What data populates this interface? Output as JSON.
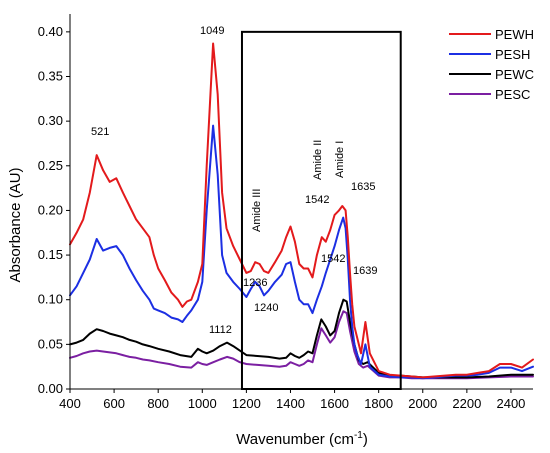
{
  "chart_data": {
    "type": "line",
    "title": "",
    "xlabel_main": "Wavenumber (cm",
    "xlabel_sup": "-1",
    "xlabel_close": ")",
    "ylabel": "Absorbance (AU)",
    "xlim": [
      400,
      2500
    ],
    "ylim": [
      0.0,
      0.42
    ],
    "xticks": [
      400,
      600,
      800,
      1000,
      1200,
      1400,
      1600,
      1800,
      2000,
      2200,
      2400
    ],
    "yticks": [
      0.0,
      0.05,
      0.1,
      0.15,
      0.2,
      0.25,
      0.3,
      0.35,
      0.4
    ],
    "ytick_labels": [
      "0.00",
      "0.05",
      "0.10",
      "0.15",
      "0.20",
      "0.25",
      "0.30",
      "0.35",
      "0.40"
    ],
    "grid": false,
    "legend_position": "top-right",
    "highlight_box": {
      "x": [
        1180,
        1900
      ],
      "y": [
        0.0,
        0.4
      ]
    },
    "series": [
      {
        "name": "PEWH",
        "color": "#e31a1c",
        "x": [
          400,
          430,
          460,
          490,
          521,
          550,
          580,
          610,
          640,
          670,
          700,
          730,
          760,
          780,
          800,
          830,
          860,
          890,
          910,
          930,
          950,
          980,
          1000,
          1020,
          1049,
          1070,
          1090,
          1110,
          1140,
          1170,
          1200,
          1220,
          1240,
          1260,
          1280,
          1300,
          1330,
          1360,
          1380,
          1400,
          1420,
          1440,
          1460,
          1480,
          1500,
          1520,
          1542,
          1560,
          1580,
          1600,
          1620,
          1635,
          1650,
          1660,
          1670,
          1680,
          1690,
          1700,
          1720,
          1740,
          1760,
          1800,
          1850,
          1900,
          1950,
          2000,
          2050,
          2100,
          2150,
          2200,
          2250,
          2300,
          2350,
          2400,
          2450,
          2500
        ],
        "y": [
          0.162,
          0.175,
          0.19,
          0.22,
          0.262,
          0.245,
          0.232,
          0.236,
          0.22,
          0.205,
          0.19,
          0.18,
          0.17,
          0.15,
          0.135,
          0.122,
          0.108,
          0.1,
          0.092,
          0.098,
          0.1,
          0.12,
          0.14,
          0.25,
          0.387,
          0.33,
          0.22,
          0.18,
          0.16,
          0.145,
          0.13,
          0.132,
          0.142,
          0.14,
          0.132,
          0.13,
          0.142,
          0.155,
          0.17,
          0.182,
          0.165,
          0.14,
          0.135,
          0.135,
          0.125,
          0.15,
          0.17,
          0.165,
          0.178,
          0.195,
          0.2,
          0.205,
          0.2,
          0.17,
          0.13,
          0.095,
          0.07,
          0.06,
          0.04,
          0.075,
          0.04,
          0.02,
          0.016,
          0.015,
          0.014,
          0.013,
          0.014,
          0.015,
          0.016,
          0.016,
          0.018,
          0.02,
          0.028,
          0.028,
          0.024,
          0.033
        ]
      },
      {
        "name": "PESH",
        "color": "#1c2fe3",
        "x": [
          400,
          430,
          460,
          490,
          521,
          550,
          580,
          610,
          640,
          670,
          700,
          730,
          760,
          780,
          800,
          830,
          860,
          890,
          910,
          930,
          950,
          980,
          1000,
          1020,
          1049,
          1070,
          1090,
          1110,
          1140,
          1170,
          1200,
          1220,
          1240,
          1260,
          1280,
          1300,
          1330,
          1360,
          1380,
          1400,
          1420,
          1440,
          1460,
          1480,
          1500,
          1520,
          1542,
          1560,
          1580,
          1600,
          1620,
          1639,
          1650,
          1660,
          1670,
          1680,
          1690,
          1700,
          1720,
          1740,
          1760,
          1800,
          1850,
          1900,
          1950,
          2000,
          2050,
          2100,
          2150,
          2200,
          2250,
          2300,
          2350,
          2400,
          2450,
          2500
        ],
        "y": [
          0.105,
          0.115,
          0.13,
          0.145,
          0.168,
          0.155,
          0.158,
          0.16,
          0.15,
          0.135,
          0.122,
          0.11,
          0.1,
          0.09,
          0.088,
          0.085,
          0.08,
          0.078,
          0.075,
          0.082,
          0.088,
          0.1,
          0.12,
          0.2,
          0.295,
          0.24,
          0.15,
          0.13,
          0.12,
          0.112,
          0.103,
          0.112,
          0.12,
          0.115,
          0.105,
          0.11,
          0.12,
          0.128,
          0.14,
          0.142,
          0.12,
          0.1,
          0.095,
          0.095,
          0.085,
          0.1,
          0.115,
          0.13,
          0.145,
          0.16,
          0.178,
          0.192,
          0.18,
          0.145,
          0.1,
          0.07,
          0.05,
          0.04,
          0.028,
          0.05,
          0.025,
          0.016,
          0.014,
          0.013,
          0.013,
          0.012,
          0.013,
          0.014,
          0.015,
          0.015,
          0.016,
          0.018,
          0.024,
          0.024,
          0.02,
          0.025
        ]
      },
      {
        "name": "PEWC",
        "color": "#000000",
        "x": [
          400,
          430,
          460,
          490,
          521,
          550,
          580,
          610,
          640,
          670,
          700,
          730,
          760,
          800,
          850,
          900,
          950,
          980,
          1000,
          1020,
          1050,
          1080,
          1112,
          1140,
          1170,
          1200,
          1250,
          1300,
          1350,
          1380,
          1400,
          1420,
          1440,
          1460,
          1480,
          1500,
          1520,
          1540,
          1560,
          1580,
          1600,
          1620,
          1640,
          1655,
          1670,
          1690,
          1710,
          1730,
          1750,
          1800,
          1850,
          1900,
          1950,
          2000,
          2100,
          2200,
          2300,
          2400,
          2500
        ],
        "y": [
          0.05,
          0.052,
          0.055,
          0.062,
          0.067,
          0.065,
          0.062,
          0.06,
          0.058,
          0.055,
          0.053,
          0.05,
          0.048,
          0.045,
          0.042,
          0.038,
          0.036,
          0.045,
          0.042,
          0.04,
          0.043,
          0.048,
          0.052,
          0.048,
          0.043,
          0.038,
          0.037,
          0.036,
          0.034,
          0.035,
          0.04,
          0.037,
          0.035,
          0.038,
          0.042,
          0.04,
          0.06,
          0.078,
          0.07,
          0.06,
          0.065,
          0.085,
          0.1,
          0.098,
          0.075,
          0.05,
          0.032,
          0.028,
          0.03,
          0.018,
          0.015,
          0.015,
          0.014,
          0.013,
          0.013,
          0.013,
          0.014,
          0.016,
          0.016
        ]
      },
      {
        "name": "PESC",
        "color": "#7b1fa2",
        "x": [
          400,
          430,
          460,
          490,
          521,
          550,
          580,
          610,
          640,
          670,
          700,
          730,
          760,
          800,
          850,
          900,
          950,
          980,
          1000,
          1020,
          1050,
          1080,
          1112,
          1140,
          1170,
          1200,
          1250,
          1300,
          1350,
          1380,
          1400,
          1420,
          1440,
          1460,
          1480,
          1500,
          1520,
          1540,
          1560,
          1580,
          1600,
          1620,
          1640,
          1655,
          1670,
          1690,
          1710,
          1730,
          1750,
          1800,
          1850,
          1900,
          1950,
          2000,
          2100,
          2200,
          2300,
          2400,
          2500
        ],
        "y": [
          0.035,
          0.037,
          0.04,
          0.042,
          0.043,
          0.042,
          0.041,
          0.04,
          0.038,
          0.036,
          0.035,
          0.033,
          0.032,
          0.03,
          0.028,
          0.025,
          0.024,
          0.03,
          0.028,
          0.027,
          0.03,
          0.033,
          0.036,
          0.034,
          0.03,
          0.028,
          0.027,
          0.026,
          0.025,
          0.026,
          0.03,
          0.028,
          0.026,
          0.028,
          0.032,
          0.03,
          0.05,
          0.068,
          0.06,
          0.052,
          0.058,
          0.075,
          0.087,
          0.085,
          0.065,
          0.042,
          0.028,
          0.024,
          0.026,
          0.015,
          0.013,
          0.013,
          0.012,
          0.012,
          0.012,
          0.012,
          0.013,
          0.014,
          0.014
        ]
      }
    ],
    "annotations": {
      "a521": "521",
      "a1049": "1049",
      "a1112": "1112",
      "a1236": "1236",
      "a1240": "1240",
      "a1542_top": "1542",
      "a1542_low": "1542",
      "a1635": "1635",
      "a1639": "1639",
      "amide_iii": "Amide III",
      "amide_ii": "Amide II",
      "amide_i": "Amide I"
    }
  }
}
